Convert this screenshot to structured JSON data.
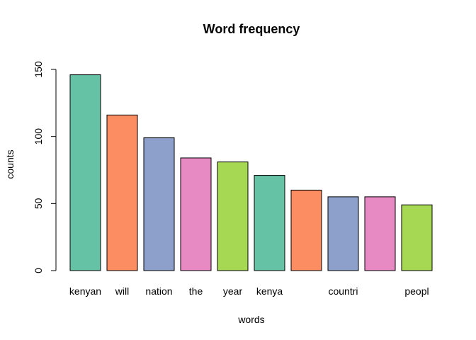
{
  "chart_data": {
    "type": "bar",
    "title": "Word frequency",
    "xlabel": "words",
    "ylabel": "counts",
    "ylim": [
      0,
      150
    ],
    "yticks": [
      0,
      50,
      100,
      150
    ],
    "categories": [
      "kenyan",
      "will",
      "nation",
      "the",
      "year",
      "kenya",
      "",
      "countri",
      "",
      "peopl"
    ],
    "values": [
      146,
      116,
      99,
      84,
      81,
      71,
      60,
      55,
      55,
      49
    ],
    "colors": [
      "#66C2A5",
      "#FC8D62",
      "#8DA0CB",
      "#E78AC3",
      "#A6D854",
      "#66C2A5",
      "#FC8D62",
      "#8DA0CB",
      "#E78AC3",
      "#A6D854"
    ],
    "grid": false,
    "legend": "none"
  }
}
